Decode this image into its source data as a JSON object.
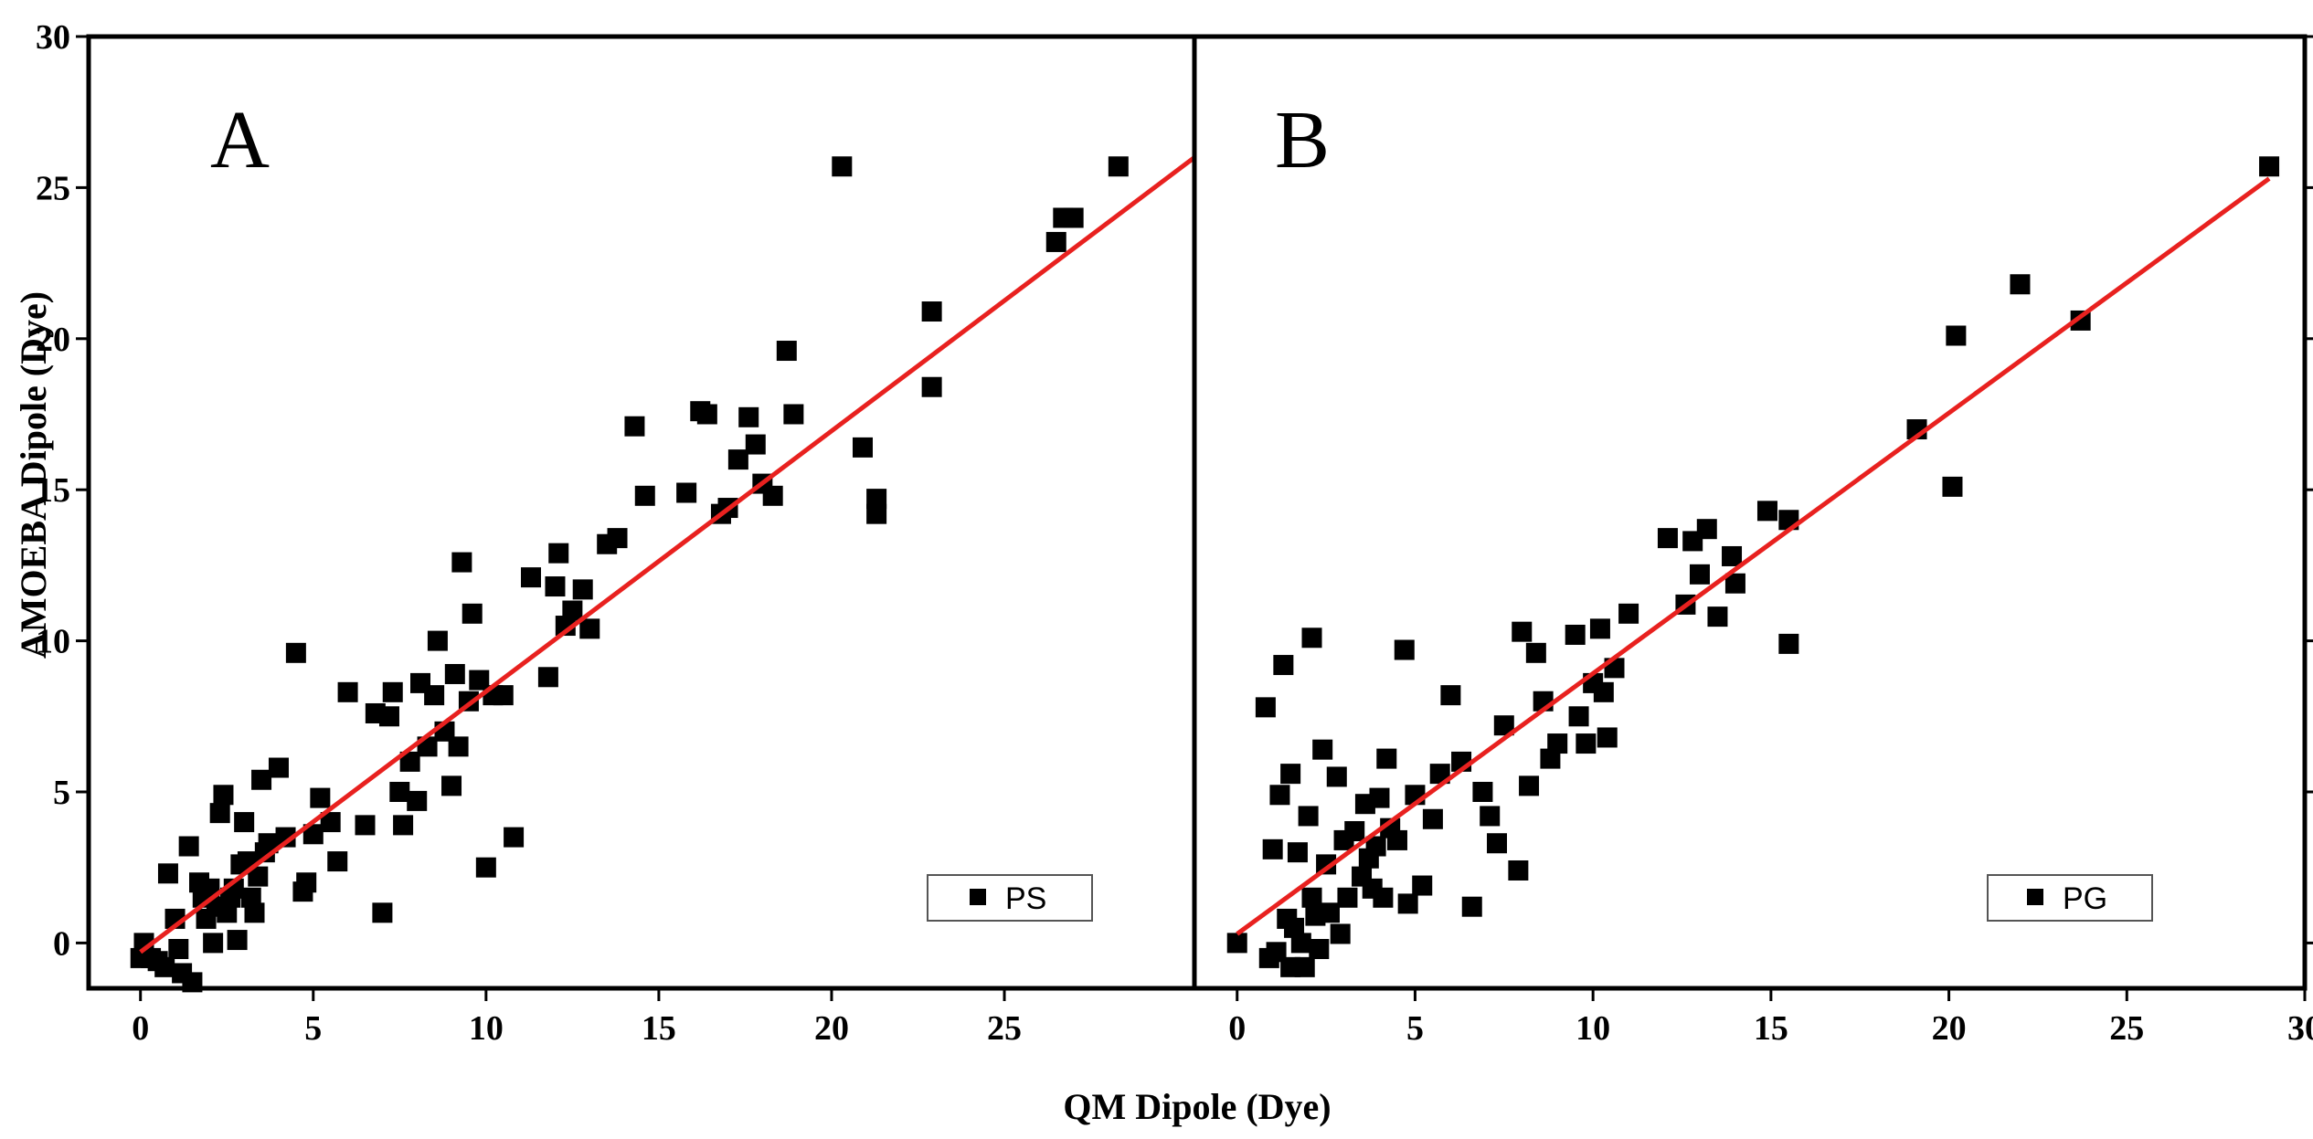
{
  "figure": {
    "x_axis_title": "QM Dipole (Dye)",
    "y_axis_title": "AMOEBA Dipole (Dye)"
  },
  "chart_data": [
    {
      "type": "scatter",
      "panel_label": "A",
      "legend": "PS",
      "legend_position": "bottom-right",
      "xlim": [
        -1.5,
        30.5
      ],
      "ylim": [
        -1.5,
        30
      ],
      "xticks": [
        0,
        5,
        10,
        15,
        20,
        25
      ],
      "yticks": [
        0,
        5,
        10,
        15,
        20,
        25,
        30
      ],
      "y_axis_side": "left",
      "fit_line": {
        "x": [
          0,
          30.5
        ],
        "y": [
          -0.3,
          26.0
        ],
        "color": "#e8211f"
      },
      "series": [
        {
          "name": "PS",
          "x": [
            0.0,
            0.1,
            0.3,
            0.5,
            0.7,
            0.8,
            1.0,
            1.1,
            1.2,
            1.4,
            1.5,
            1.7,
            1.8,
            1.9,
            2.0,
            2.1,
            2.2,
            2.3,
            2.4,
            2.5,
            2.6,
            2.7,
            2.8,
            2.9,
            3.0,
            3.1,
            3.2,
            3.3,
            3.4,
            3.5,
            3.6,
            3.7,
            4.0,
            4.2,
            4.5,
            4.7,
            4.8,
            5.0,
            5.2,
            5.5,
            5.7,
            6.0,
            6.5,
            6.8,
            7.0,
            7.2,
            7.3,
            7.5,
            7.6,
            7.8,
            8.0,
            8.1,
            8.3,
            8.5,
            8.6,
            8.8,
            9.0,
            9.1,
            9.2,
            9.3,
            9.5,
            9.6,
            9.8,
            10.0,
            10.2,
            10.5,
            10.8,
            11.3,
            11.8,
            12.0,
            12.1,
            12.3,
            12.5,
            12.8,
            13.0,
            13.5,
            13.8,
            14.3,
            14.6,
            15.8,
            16.2,
            16.4,
            16.8,
            17.0,
            17.3,
            17.6,
            17.8,
            18.0,
            18.3,
            18.7,
            18.9,
            20.3,
            20.9,
            21.3,
            21.3,
            22.9,
            22.9,
            26.5,
            26.7,
            27.0,
            28.3
          ],
          "y": [
            -0.5,
            0.0,
            -0.5,
            -0.6,
            -0.8,
            2.3,
            0.8,
            -0.2,
            -1.0,
            3.2,
            -1.3,
            2.0,
            1.5,
            0.8,
            1.8,
            0.0,
            1.2,
            4.3,
            4.9,
            1.0,
            1.5,
            1.8,
            0.1,
            2.6,
            4.0,
            2.7,
            1.5,
            1.0,
            2.2,
            5.4,
            3.0,
            3.3,
            5.8,
            3.5,
            9.6,
            1.7,
            2.0,
            3.6,
            4.8,
            4.0,
            2.7,
            8.3,
            3.9,
            7.6,
            1.0,
            7.5,
            8.3,
            5.0,
            3.9,
            6.0,
            4.7,
            8.6,
            6.5,
            8.2,
            10.0,
            7.0,
            5.2,
            8.9,
            6.5,
            12.6,
            8.0,
            10.9,
            8.7,
            2.5,
            8.2,
            8.2,
            3.5,
            12.1,
            8.8,
            11.8,
            12.9,
            10.5,
            11.0,
            11.7,
            10.4,
            13.2,
            13.4,
            17.1,
            14.8,
            14.9,
            17.6,
            17.5,
            14.2,
            14.4,
            16.0,
            17.4,
            16.5,
            15.2,
            14.8,
            19.6,
            17.5,
            25.7,
            16.4,
            14.2,
            14.7,
            20.9,
            18.4,
            23.2,
            24.0,
            24.0,
            25.7
          ]
        }
      ]
    },
    {
      "type": "scatter",
      "panel_label": "B",
      "legend": "PG",
      "legend_position": "bottom-right",
      "xlim": [
        -1.2,
        30
      ],
      "ylim": [
        -1.5,
        30
      ],
      "xticks": [
        0,
        5,
        10,
        15,
        20,
        25,
        30
      ],
      "yticks": [
        0,
        5,
        10,
        15,
        20,
        25,
        30
      ],
      "y_axis_side": "right",
      "fit_line": {
        "x": [
          0,
          29
        ],
        "y": [
          0.3,
          25.3
        ],
        "color": "#e8211f"
      },
      "series": [
        {
          "name": "PG",
          "x": [
            0.0,
            0.8,
            0.9,
            1.0,
            1.1,
            1.2,
            1.3,
            1.4,
            1.5,
            1.5,
            1.6,
            1.7,
            1.8,
            1.9,
            2.0,
            2.1,
            2.1,
            2.2,
            2.3,
            2.4,
            2.5,
            2.6,
            2.8,
            2.9,
            3.0,
            3.1,
            3.3,
            3.5,
            3.6,
            3.7,
            3.8,
            3.9,
            4.0,
            4.1,
            4.2,
            4.3,
            4.5,
            4.7,
            4.8,
            5.0,
            5.2,
            5.5,
            5.7,
            6.0,
            6.3,
            6.6,
            6.9,
            7.1,
            7.3,
            7.5,
            7.9,
            8.0,
            8.2,
            8.4,
            8.6,
            8.8,
            9.0,
            9.5,
            9.6,
            9.8,
            10.0,
            10.2,
            10.3,
            10.4,
            10.6,
            11.0,
            12.1,
            12.6,
            12.8,
            13.0,
            13.2,
            13.5,
            13.9,
            14.0,
            14.9,
            15.5,
            15.5,
            19.1,
            20.1,
            20.2,
            22.0,
            23.7,
            29.0
          ],
          "y": [
            0.0,
            7.8,
            -0.5,
            3.1,
            -0.3,
            4.9,
            9.2,
            0.8,
            5.6,
            -0.8,
            0.5,
            3.0,
            0.0,
            -0.8,
            4.2,
            10.1,
            1.5,
            0.9,
            -0.2,
            6.4,
            2.6,
            1.0,
            5.5,
            0.3,
            3.4,
            1.5,
            3.7,
            2.2,
            4.6,
            2.8,
            1.8,
            3.2,
            4.8,
            1.5,
            6.1,
            3.8,
            3.4,
            9.7,
            1.3,
            4.9,
            1.9,
            4.1,
            5.6,
            8.2,
            6.0,
            1.2,
            5.0,
            4.2,
            3.3,
            7.2,
            2.4,
            10.3,
            5.2,
            9.6,
            8.0,
            6.1,
            6.6,
            10.2,
            7.5,
            6.6,
            8.6,
            10.4,
            8.3,
            6.8,
            9.1,
            10.9,
            13.4,
            11.2,
            13.3,
            12.2,
            13.7,
            10.8,
            12.8,
            11.9,
            14.3,
            14.0,
            9.9,
            17.0,
            15.1,
            20.1,
            21.8,
            20.6,
            25.7
          ]
        }
      ]
    }
  ]
}
